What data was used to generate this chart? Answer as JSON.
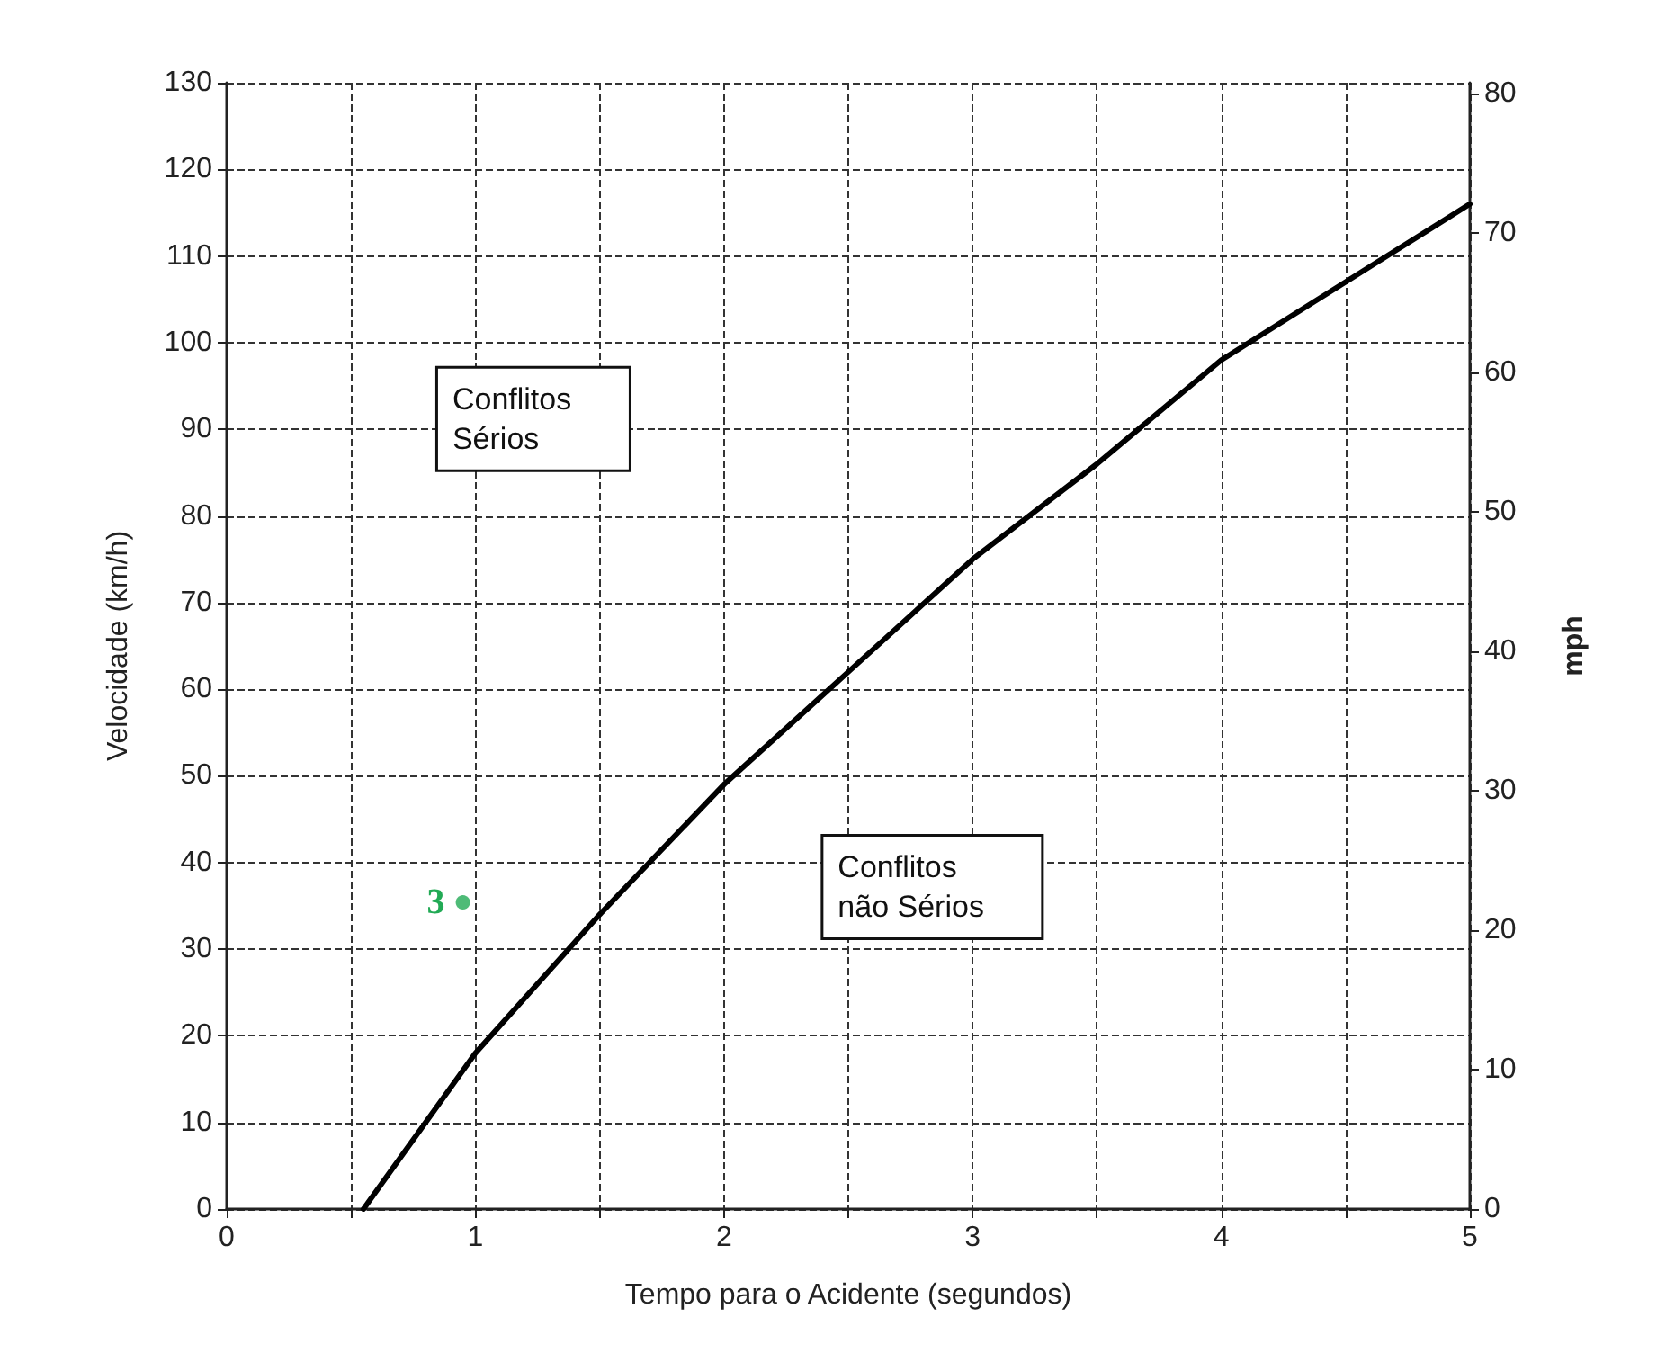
{
  "chart_data": {
    "type": "line",
    "xlabel": "Tempo para o Acidente (segundos)",
    "ylabel": "Velocidade (km/h)",
    "y2label": "mph",
    "xlim": [
      0,
      5
    ],
    "xticks": [
      0,
      {
        "value": 0.5,
        "label": null
      },
      1,
      {
        "value": 1.5,
        "label": null
      },
      2,
      {
        "value": 2.5,
        "label": null
      },
      3,
      {
        "value": 3.5,
        "label": null
      },
      4,
      {
        "value": 4.5,
        "label": null
      },
      5
    ],
    "ylim": [
      0,
      130
    ],
    "yticks": [
      0,
      10,
      20,
      30,
      40,
      50,
      60,
      70,
      80,
      90,
      100,
      110,
      120,
      130
    ],
    "y2lim": [
      0,
      80.78
    ],
    "y2ticks": [
      0,
      10,
      20,
      30,
      40,
      50,
      60,
      70,
      80
    ],
    "grid": true,
    "marker": "none",
    "line_style": "solid",
    "series": [
      {
        "color": "#000000",
        "x": [
          0.55,
          1,
          1.5,
          2,
          2.5,
          3,
          3.5,
          4,
          4.5,
          5
        ],
        "values": [
          0,
          18,
          34,
          49,
          62,
          75,
          86,
          98,
          107,
          116
        ]
      },
      {
        "type": "scatter",
        "color": "#22aa55",
        "marker": "circle",
        "x": [
          0.95
        ],
        "values": [
          35.4
        ]
      }
    ],
    "annotations": [
      "Conflitos Sérios",
      "Conflitos não Sérios",
      {
        "text": "3",
        "x": 0.95,
        "y": 35.4
      }
    ]
  }
}
